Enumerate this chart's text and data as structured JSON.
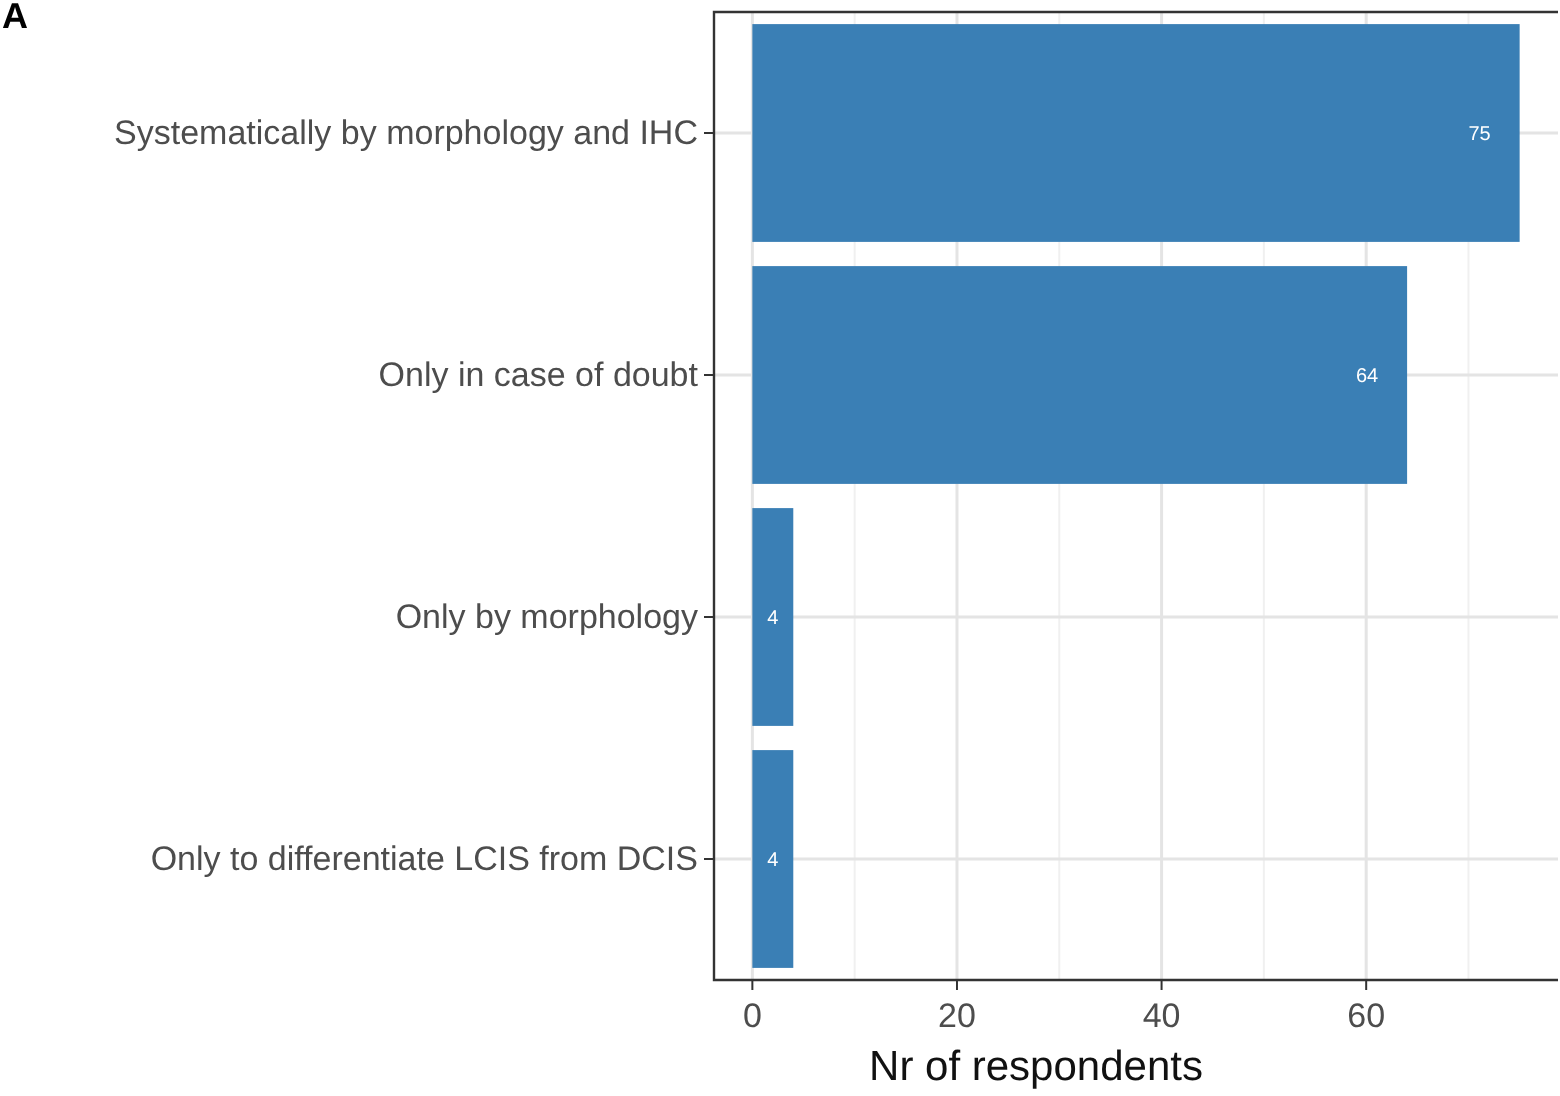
{
  "chart_data": {
    "type": "bar",
    "orientation": "horizontal",
    "categories": [
      "Systematically by morphology and IHC",
      "Only in case of doubt",
      "Only by morphology",
      "Only  to differentiate LCIS from DCIS"
    ],
    "values": [
      75,
      64,
      4,
      4
    ],
    "color": "#3a7fb5",
    "xlim": [
      -3.75,
      78.75
    ],
    "xticks": [
      0,
      20,
      40,
      60
    ],
    "xlabel": "Nr of respondents",
    "data_labels": true,
    "grid": true,
    "annotations": [
      "A"
    ]
  }
}
